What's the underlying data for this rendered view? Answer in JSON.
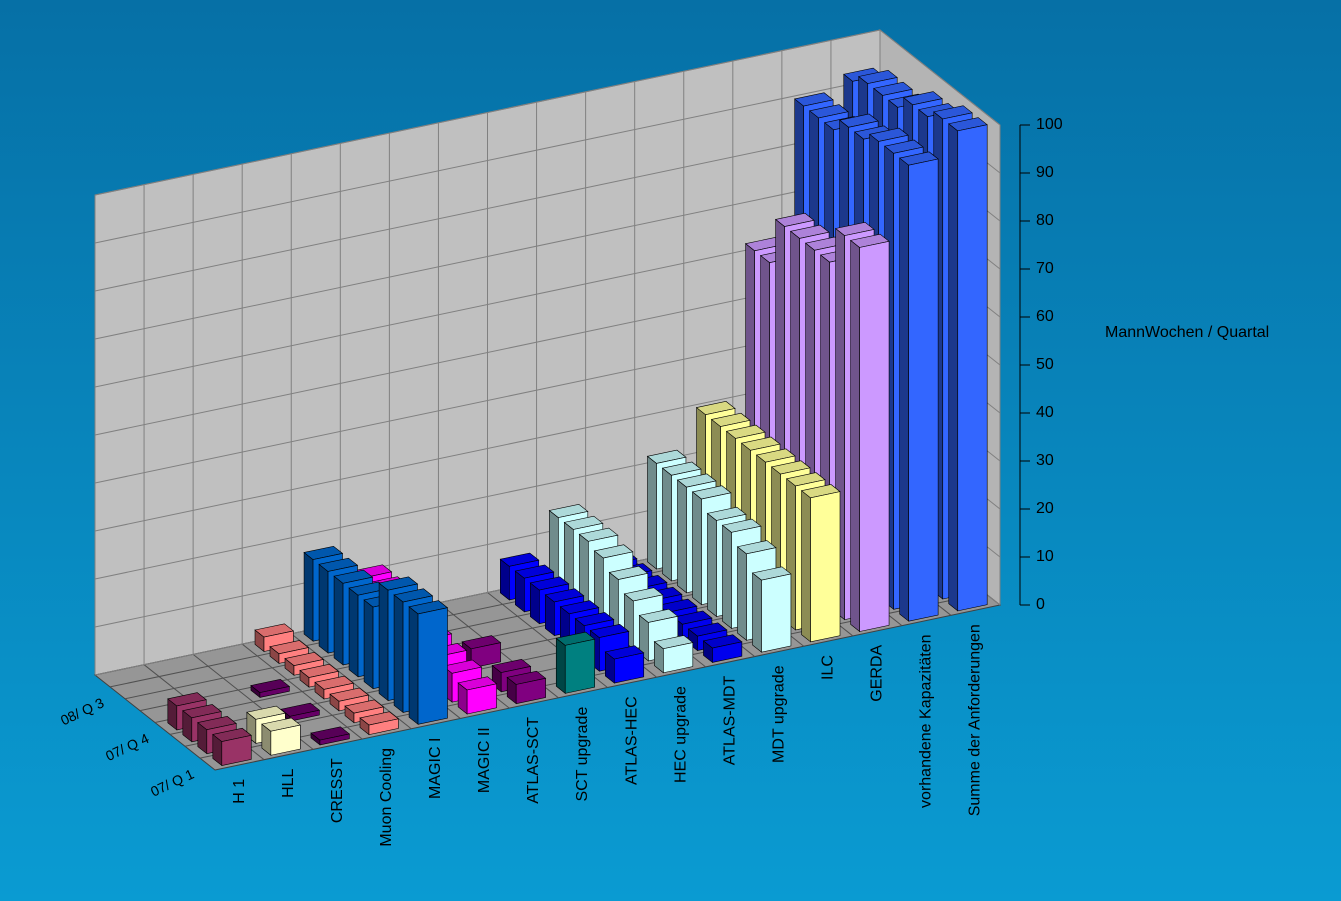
{
  "chart_data": {
    "type": "bar3d",
    "y_axis_label": "MannWochen / Quartal",
    "categories": [
      "H 1",
      "HLL",
      "CRESST",
      "Muon Cooling",
      "MAGIC I",
      "MAGIC II",
      "ATLAS-SCT",
      "SCT upgrade",
      "ATLAS-HEC",
      "HEC upgrade",
      "ATLAS-MDT",
      "MDT upgrade",
      "ILC",
      "GERDA",
      "vorhandene Kapazitäten",
      "Summe der Anforderungen"
    ],
    "colors": [
      "#993366",
      "#ffffcc",
      "#660066",
      "#ff8080",
      "#0066cc",
      "#ff00ff",
      "#800080",
      "#008080",
      "#0000ff",
      "#ccffff",
      "#0000ee",
      "#ccffff",
      "#ffff99",
      "#cc99ff",
      "#3366ff",
      "#3366ff"
    ],
    "series": [
      {
        "name": "07/ Q 1",
        "values": [
          5,
          5,
          1,
          2,
          23,
          5,
          4,
          10,
          5,
          5,
          3,
          15,
          30,
          80,
          95,
          100
        ]
      },
      {
        "name": null,
        "values": [
          5,
          5,
          null,
          2,
          23,
          6,
          4,
          null,
          7,
          8,
          3,
          18,
          30,
          80,
          95,
          100
        ]
      },
      {
        "name": null,
        "values": [
          5,
          null,
          1,
          2,
          23,
          7,
          null,
          null,
          7,
          10,
          3,
          20,
          30,
          72,
          95,
          98
        ]
      },
      {
        "name": "07/ Q 4",
        "values": [
          5,
          null,
          null,
          2,
          17,
          8,
          4,
          null,
          7,
          12,
          3,
          20,
          30,
          72,
          93,
          98
        ]
      },
      {
        "name": null,
        "values": [
          null,
          null,
          1,
          2,
          17,
          9,
          null,
          null,
          7,
          14,
          3,
          22,
          30,
          72,
          93,
          95
        ]
      },
      {
        "name": null,
        "values": [
          null,
          null,
          null,
          2,
          17,
          10,
          null,
          null,
          7,
          15,
          3,
          22,
          30,
          72,
          90,
          95
        ]
      },
      {
        "name": "08/ Q 3",
        "values": [
          null,
          null,
          null,
          2,
          17,
          11,
          null,
          null,
          7,
          15,
          3,
          22,
          30,
          62,
          90,
          95
        ]
      },
      {
        "name": null,
        "values": [
          null,
          null,
          null,
          3,
          17,
          11,
          null,
          null,
          7,
          15,
          3,
          22,
          30,
          62,
          90,
          93
        ]
      }
    ],
    "ylim": [
      0,
      100
    ],
    "yticks": [
      0,
      10,
      20,
      30,
      40,
      50,
      60,
      70,
      80,
      90,
      100
    ],
    "grid": true
  }
}
